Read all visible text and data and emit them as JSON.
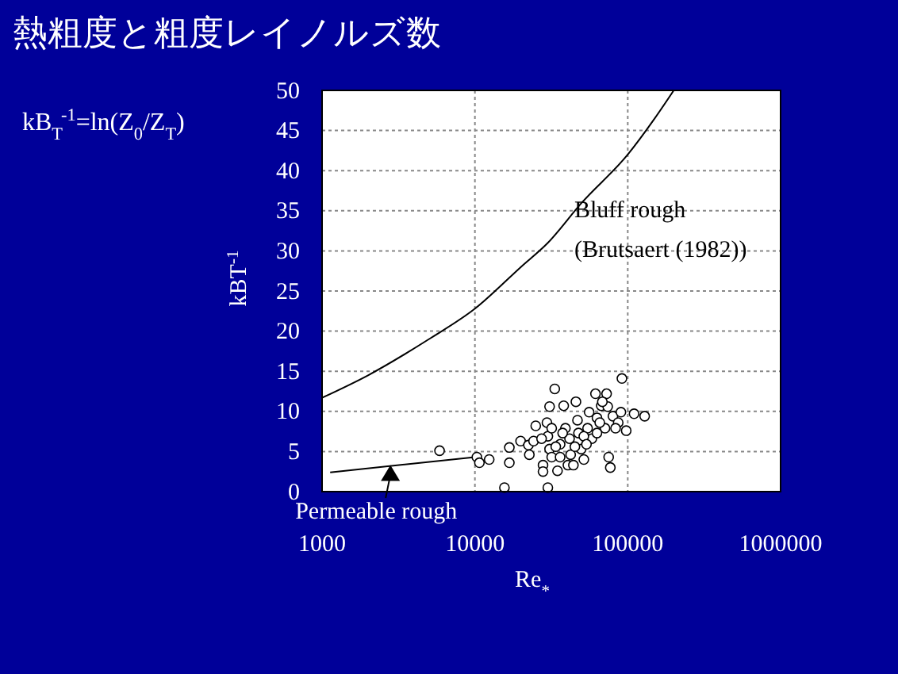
{
  "chart_data": {
    "type": "scatter",
    "title": "熱粗度と粗度レイノルズ数",
    "xlabel": "Re$_{*}$",
    "ylabel": "kBT$^{-1}$",
    "log": "x",
    "xlim": [
      1000,
      1000000
    ],
    "xticks": [
      1000,
      10000,
      100000,
      1000000
    ],
    "ylim": [
      0,
      50
    ],
    "yticks": [
      0,
      5,
      10,
      15,
      20,
      25,
      30,
      35,
      40,
      45,
      50
    ],
    "grid": true,
    "annotations": [
      "kB$_{T}$$^{-1}$=ln(Z$_{0}$/Z$_{T}$)",
      "Bluff rough",
      "(Brutsaert (1982))",
      {
        "text": "Permeable rough",
        "x": 2800,
        "y": 3.3
      }
    ],
    "series": [
      {
        "type": "line",
        "color": "#000000",
        "x": [
          1000,
          2000,
          5000,
          10000,
          20000,
          30000,
          50000,
          100000,
          150000,
          200000
        ],
        "values": [
          11.7,
          14.5,
          19,
          22.8,
          28,
          31,
          36,
          42,
          46.5,
          50
        ]
      },
      {
        "type": "line",
        "color": "#000000",
        "x": [
          1130,
          10000
        ],
        "values": [
          2.4,
          4.3
        ]
      },
      {
        "type": "scatter",
        "marker": "circle",
        "color": "#000000",
        "x": [
          5870,
          10300,
          10700,
          12400,
          15600,
          16800,
          16800,
          19900,
          22400,
          22700,
          25000,
          27900,
          27900,
          30000,
          33300,
          30800,
          29600,
          30000,
          30800,
          31800,
          34700,
          36100,
          38100,
          39100,
          40600,
          41600,
          42300,
          45800,
          46900,
          47600,
          49600,
          51600,
          54600,
          55900,
          58200,
          61500,
          62900,
          67100,
          71000,
          72700,
          73900,
          75000,
          76900,
          80000,
          86600,
          91600,
          90200,
          97700,
          110000,
          129000,
          24200,
          27300,
          31800,
          33800,
          36100,
          37500,
          44100,
          45100,
          51600,
          53700,
          62900,
          65600,
          83200,
          68200
        ],
        "values": [
          5.1,
          4.3,
          3.6,
          4.0,
          0.5,
          5.5,
          3.6,
          6.3,
          5.8,
          4.6,
          8.2,
          3.3,
          2.5,
          0.5,
          12.8,
          10.6,
          8.6,
          6.9,
          5.3,
          4.3,
          2.6,
          5.9,
          10.7,
          7.9,
          3.3,
          6.6,
          4.6,
          11.2,
          8.9,
          7.3,
          5.3,
          4.0,
          7.9,
          9.9,
          6.6,
          12.2,
          9.2,
          10.7,
          7.9,
          12.2,
          10.6,
          4.3,
          3.0,
          9.4,
          8.6,
          14.1,
          9.9,
          7.6,
          9.7,
          9.4,
          6.3,
          6.6,
          7.9,
          5.6,
          4.3,
          7.3,
          3.3,
          5.6,
          6.9,
          5.9,
          7.3,
          8.6,
          7.9,
          11.2
        ]
      }
    ]
  }
}
